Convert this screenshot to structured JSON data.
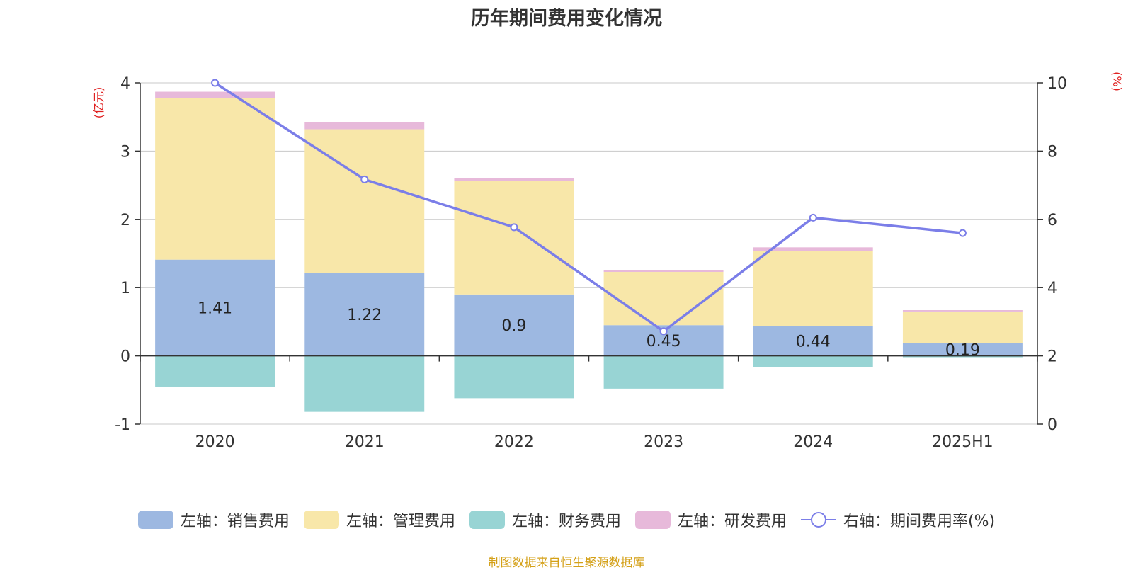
{
  "chart_data": {
    "type": "bar",
    "title": "历年期间费用变化情况",
    "categories": [
      "2020",
      "2021",
      "2022",
      "2023",
      "2024",
      "2025H1"
    ],
    "stacked": true,
    "y_left_unit": "(亿元)",
    "y_right_unit": "(%)",
    "y_left_lim": [
      -1,
      4
    ],
    "y_left_ticks": [
      "-1",
      "0",
      "1",
      "2",
      "3",
      "4"
    ],
    "y_right_lim": [
      0,
      10
    ],
    "y_right_ticks": [
      "0",
      "2",
      "4",
      "6",
      "8",
      "10"
    ],
    "grid": true,
    "legend_position": "bottom",
    "series": [
      {
        "name": "左轴：销售费用",
        "type": "bar",
        "axis": "left",
        "color": "#9db8e1",
        "values": [
          1.41,
          1.22,
          0.9,
          0.45,
          0.44,
          0.19
        ],
        "labels": [
          "1.41",
          "1.22",
          "0.9",
          "0.45",
          "0.44",
          "0.19"
        ]
      },
      {
        "name": "左轴：管理费用",
        "type": "bar",
        "axis": "left",
        "color": "#f8e7a9",
        "values": [
          2.37,
          2.1,
          1.66,
          0.78,
          1.1,
          0.46
        ]
      },
      {
        "name": "左轴：财务费用",
        "type": "bar",
        "axis": "left",
        "color": "#98d4d4",
        "values": [
          -0.45,
          -0.82,
          -0.62,
          -0.48,
          -0.17,
          -0.02
        ]
      },
      {
        "name": "左轴：研发费用",
        "type": "bar",
        "axis": "left",
        "color": "#e7b9da",
        "values": [
          0.09,
          0.1,
          0.05,
          0.03,
          0.05,
          0.02
        ]
      },
      {
        "name": "右轴：期间费用率(%)",
        "type": "line",
        "axis": "right",
        "color": "#7b7ee8",
        "values": [
          10.0,
          7.17,
          5.77,
          2.72,
          6.05,
          5.6
        ]
      }
    ]
  },
  "source": "制图数据来自恒生聚源数据库"
}
